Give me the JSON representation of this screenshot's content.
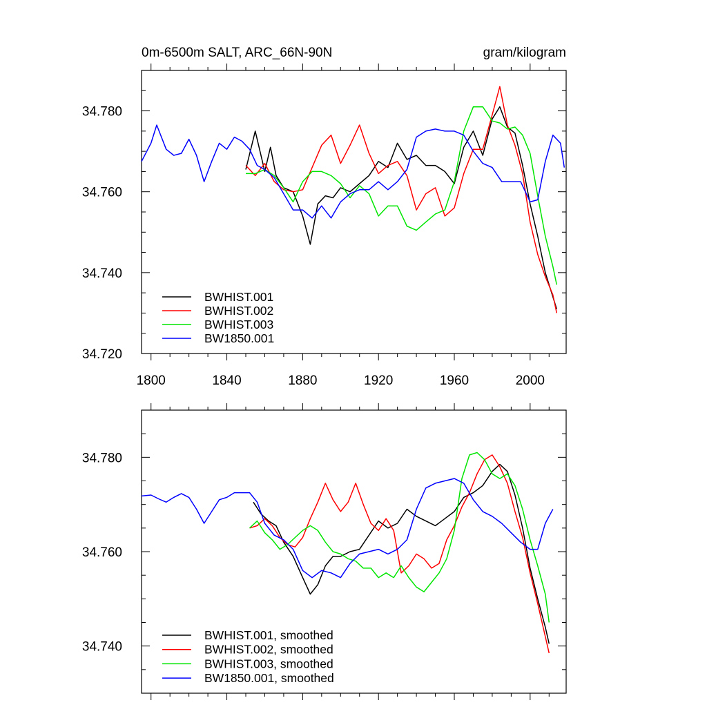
{
  "title_left": "0m-6500m SALT, ARC_66N-90N",
  "title_right": "gram/kilogram",
  "colors": {
    "BWHIST.001": "#000000",
    "BWHIST.002": "#ff0000",
    "BWHIST.003": "#00e600",
    "BW1850.001": "#0000ff"
  },
  "chart_data": [
    {
      "type": "line",
      "title": "0m-6500m SALT, ARC_66N-90N",
      "units": "gram/kilogram",
      "xlim": [
        1795,
        2019
      ],
      "ylim": [
        34.72,
        34.79
      ],
      "xticks": [
        1800,
        1840,
        1880,
        1920,
        1960,
        2000
      ],
      "xtick_labels": [
        "1800",
        "1840",
        "1880",
        "1920",
        "1960",
        "2000"
      ],
      "yticks": [
        34.72,
        34.74,
        34.76,
        34.78
      ],
      "ytick_labels": [
        "34.720",
        "34.740",
        "34.760",
        "34.780"
      ],
      "legend_position": "bottom-left",
      "series": [
        {
          "name": "BWHIST.001",
          "color": "#000000",
          "x": [
            1850,
            1855,
            1860,
            1863,
            1866,
            1870,
            1875,
            1880,
            1884,
            1888,
            1892,
            1896,
            1900,
            1905,
            1910,
            1915,
            1920,
            1925,
            1930,
            1935,
            1940,
            1945,
            1950,
            1955,
            1960,
            1965,
            1970,
            1975,
            1980,
            1984,
            1988,
            1992,
            1996,
            2000,
            2004,
            2008,
            2012,
            2014
          ],
          "y": [
            34.7655,
            34.775,
            34.765,
            34.771,
            34.764,
            34.761,
            34.76,
            34.754,
            34.747,
            34.757,
            34.759,
            34.7585,
            34.761,
            34.76,
            34.762,
            34.764,
            34.7675,
            34.766,
            34.772,
            34.768,
            34.769,
            34.7665,
            34.7665,
            34.765,
            34.762,
            34.771,
            34.775,
            34.769,
            34.778,
            34.781,
            34.776,
            34.7745,
            34.7665,
            34.757,
            34.749,
            34.74,
            34.734,
            34.731
          ]
        },
        {
          "name": "BWHIST.002",
          "color": "#ff0000",
          "x": [
            1850,
            1855,
            1860,
            1865,
            1870,
            1875,
            1880,
            1885,
            1890,
            1895,
            1900,
            1905,
            1910,
            1915,
            1920,
            1925,
            1930,
            1935,
            1940,
            1945,
            1950,
            1955,
            1960,
            1965,
            1970,
            1975,
            1980,
            1984,
            1988,
            1992,
            1996,
            2000,
            2004,
            2008,
            2012,
            2014
          ],
          "y": [
            34.7665,
            34.764,
            34.767,
            34.7625,
            34.7605,
            34.76,
            34.7605,
            34.766,
            34.7715,
            34.774,
            34.767,
            34.7715,
            34.7765,
            34.7695,
            34.7645,
            34.7665,
            34.7675,
            34.764,
            34.7555,
            34.7595,
            34.761,
            34.754,
            34.756,
            34.7645,
            34.7705,
            34.7705,
            34.779,
            34.786,
            34.7765,
            34.7715,
            34.7645,
            34.7525,
            34.7445,
            34.739,
            34.7345,
            34.73
          ]
        },
        {
          "name": "BWHIST.003",
          "color": "#00e600",
          "x": [
            1850,
            1855,
            1860,
            1865,
            1870,
            1875,
            1880,
            1885,
            1890,
            1895,
            1900,
            1905,
            1910,
            1915,
            1920,
            1925,
            1930,
            1935,
            1940,
            1945,
            1950,
            1955,
            1960,
            1965,
            1970,
            1975,
            1980,
            1984,
            1988,
            1992,
            1996,
            2000,
            2004,
            2008,
            2012,
            2014
          ],
          "y": [
            34.7645,
            34.7645,
            34.7655,
            34.764,
            34.761,
            34.7575,
            34.7625,
            34.765,
            34.765,
            34.764,
            34.762,
            34.7585,
            34.7615,
            34.7595,
            34.754,
            34.7565,
            34.7565,
            34.7515,
            34.7505,
            34.7525,
            34.7545,
            34.7555,
            34.7625,
            34.775,
            34.781,
            34.781,
            34.7775,
            34.777,
            34.7755,
            34.776,
            34.774,
            34.7695,
            34.759,
            34.749,
            34.7415,
            34.737
          ]
        },
        {
          "name": "BW1850.001",
          "color": "#0000ff",
          "x": [
            1795,
            1800,
            1803,
            1808,
            1812,
            1816,
            1820,
            1824,
            1828,
            1832,
            1836,
            1840,
            1844,
            1848,
            1852,
            1856,
            1860,
            1865,
            1870,
            1875,
            1880,
            1885,
            1890,
            1895,
            1900,
            1905,
            1910,
            1915,
            1920,
            1925,
            1930,
            1935,
            1940,
            1945,
            1950,
            1955,
            1960,
            1965,
            1970,
            1975,
            1980,
            1985,
            1990,
            1995,
            2000,
            2004,
            2008,
            2012,
            2016,
            2018
          ],
          "y": [
            34.7675,
            34.772,
            34.7765,
            34.7705,
            34.769,
            34.7695,
            34.773,
            34.769,
            34.7625,
            34.7675,
            34.772,
            34.7705,
            34.7735,
            34.7725,
            34.7705,
            34.7665,
            34.7655,
            34.7635,
            34.7595,
            34.7555,
            34.7555,
            34.7535,
            34.7565,
            34.7535,
            34.7575,
            34.7595,
            34.7605,
            34.7605,
            34.7625,
            34.7605,
            34.7625,
            34.7655,
            34.7735,
            34.775,
            34.7755,
            34.775,
            34.775,
            34.774,
            34.77,
            34.767,
            34.766,
            34.7625,
            34.7625,
            34.7625,
            34.7575,
            34.758,
            34.7675,
            34.774,
            34.772,
            34.766
          ]
        }
      ]
    },
    {
      "type": "line",
      "title": "",
      "xlim": [
        1795,
        2019
      ],
      "ylim": [
        34.73,
        34.79
      ],
      "xticks": [
        1800,
        1840,
        1880,
        1920,
        1960,
        2000
      ],
      "yticks": [
        34.74,
        34.76,
        34.78
      ],
      "ytick_labels": [
        "34.740",
        "34.760",
        "34.780"
      ],
      "legend_position": "bottom-left",
      "series": [
        {
          "name": "BWHIST.001, smoothed",
          "color": "#000000",
          "x": [
            1854,
            1858,
            1862,
            1866,
            1870,
            1875,
            1880,
            1884,
            1888,
            1892,
            1896,
            1900,
            1905,
            1910,
            1915,
            1920,
            1925,
            1930,
            1935,
            1940,
            1945,
            1950,
            1955,
            1960,
            1965,
            1970,
            1975,
            1980,
            1984,
            1988,
            1992,
            1996,
            2000,
            2004,
            2008,
            2010
          ],
          "y": [
            34.7705,
            34.768,
            34.7665,
            34.7655,
            34.762,
            34.759,
            34.7545,
            34.751,
            34.753,
            34.757,
            34.759,
            34.759,
            34.76,
            34.7605,
            34.7635,
            34.7665,
            34.765,
            34.766,
            34.769,
            34.7675,
            34.7665,
            34.7655,
            34.767,
            34.7685,
            34.7715,
            34.7725,
            34.774,
            34.777,
            34.7785,
            34.777,
            34.772,
            34.765,
            34.7565,
            34.75,
            34.744,
            34.7405
          ]
        },
        {
          "name": "BWHIST.002, smoothed",
          "color": "#ff0000",
          "x": [
            1852,
            1856,
            1860,
            1864,
            1868,
            1872,
            1876,
            1880,
            1884,
            1888,
            1892,
            1896,
            1900,
            1904,
            1908,
            1912,
            1916,
            1920,
            1924,
            1928,
            1932,
            1936,
            1940,
            1944,
            1948,
            1952,
            1956,
            1960,
            1964,
            1968,
            1972,
            1976,
            1980,
            1984,
            1988,
            1992,
            1996,
            2000,
            2004,
            2008,
            2010
          ],
          "y": [
            34.765,
            34.7655,
            34.767,
            34.7655,
            34.763,
            34.7615,
            34.761,
            34.763,
            34.767,
            34.7705,
            34.7745,
            34.771,
            34.7685,
            34.7705,
            34.7745,
            34.77,
            34.766,
            34.7645,
            34.767,
            34.7645,
            34.7555,
            34.757,
            34.7595,
            34.7585,
            34.7565,
            34.7575,
            34.7625,
            34.7655,
            34.7695,
            34.7725,
            34.7765,
            34.7795,
            34.7805,
            34.778,
            34.7745,
            34.7685,
            34.763,
            34.7555,
            34.749,
            34.742,
            34.7385
          ]
        },
        {
          "name": "BWHIST.003, smoothed",
          "color": "#00e600",
          "x": [
            1852,
            1856,
            1860,
            1864,
            1868,
            1872,
            1876,
            1880,
            1884,
            1888,
            1892,
            1896,
            1900,
            1904,
            1908,
            1912,
            1916,
            1920,
            1924,
            1928,
            1932,
            1936,
            1940,
            1944,
            1948,
            1952,
            1956,
            1960,
            1964,
            1968,
            1972,
            1976,
            1980,
            1984,
            1988,
            1992,
            1996,
            2000,
            2004,
            2008,
            2010
          ],
          "y": [
            34.765,
            34.7665,
            34.764,
            34.7625,
            34.7605,
            34.7615,
            34.763,
            34.7645,
            34.7655,
            34.7645,
            34.762,
            34.76,
            34.7595,
            34.7585,
            34.758,
            34.7565,
            34.7565,
            34.7545,
            34.7555,
            34.7545,
            34.757,
            34.7545,
            34.7525,
            34.7515,
            34.7535,
            34.7555,
            34.7585,
            34.7645,
            34.7755,
            34.7805,
            34.781,
            34.7795,
            34.7765,
            34.7755,
            34.7765,
            34.774,
            34.769,
            34.7625,
            34.757,
            34.751,
            34.745
          ]
        },
        {
          "name": "BW1850.001, smoothed",
          "color": "#0000ff",
          "x": [
            1795,
            1800,
            1804,
            1808,
            1812,
            1816,
            1820,
            1824,
            1828,
            1832,
            1836,
            1840,
            1844,
            1848,
            1852,
            1856,
            1860,
            1865,
            1870,
            1875,
            1880,
            1885,
            1890,
            1895,
            1900,
            1905,
            1910,
            1915,
            1920,
            1925,
            1930,
            1935,
            1940,
            1945,
            1950,
            1955,
            1960,
            1965,
            1970,
            1975,
            1980,
            1985,
            1990,
            1995,
            2000,
            2004,
            2008,
            2012
          ],
          "y": [
            34.7718,
            34.772,
            34.7712,
            34.7705,
            34.7715,
            34.7723,
            34.7715,
            34.769,
            34.766,
            34.7685,
            34.771,
            34.7715,
            34.7725,
            34.7725,
            34.7725,
            34.7705,
            34.766,
            34.7635,
            34.7625,
            34.7605,
            34.756,
            34.7545,
            34.756,
            34.7555,
            34.7545,
            34.7575,
            34.7595,
            34.76,
            34.7605,
            34.7595,
            34.7605,
            34.7625,
            34.769,
            34.7735,
            34.7745,
            34.775,
            34.7755,
            34.7745,
            34.771,
            34.7685,
            34.7675,
            34.766,
            34.764,
            34.762,
            34.7605,
            34.7605,
            34.766,
            34.769
          ]
        }
      ]
    }
  ]
}
